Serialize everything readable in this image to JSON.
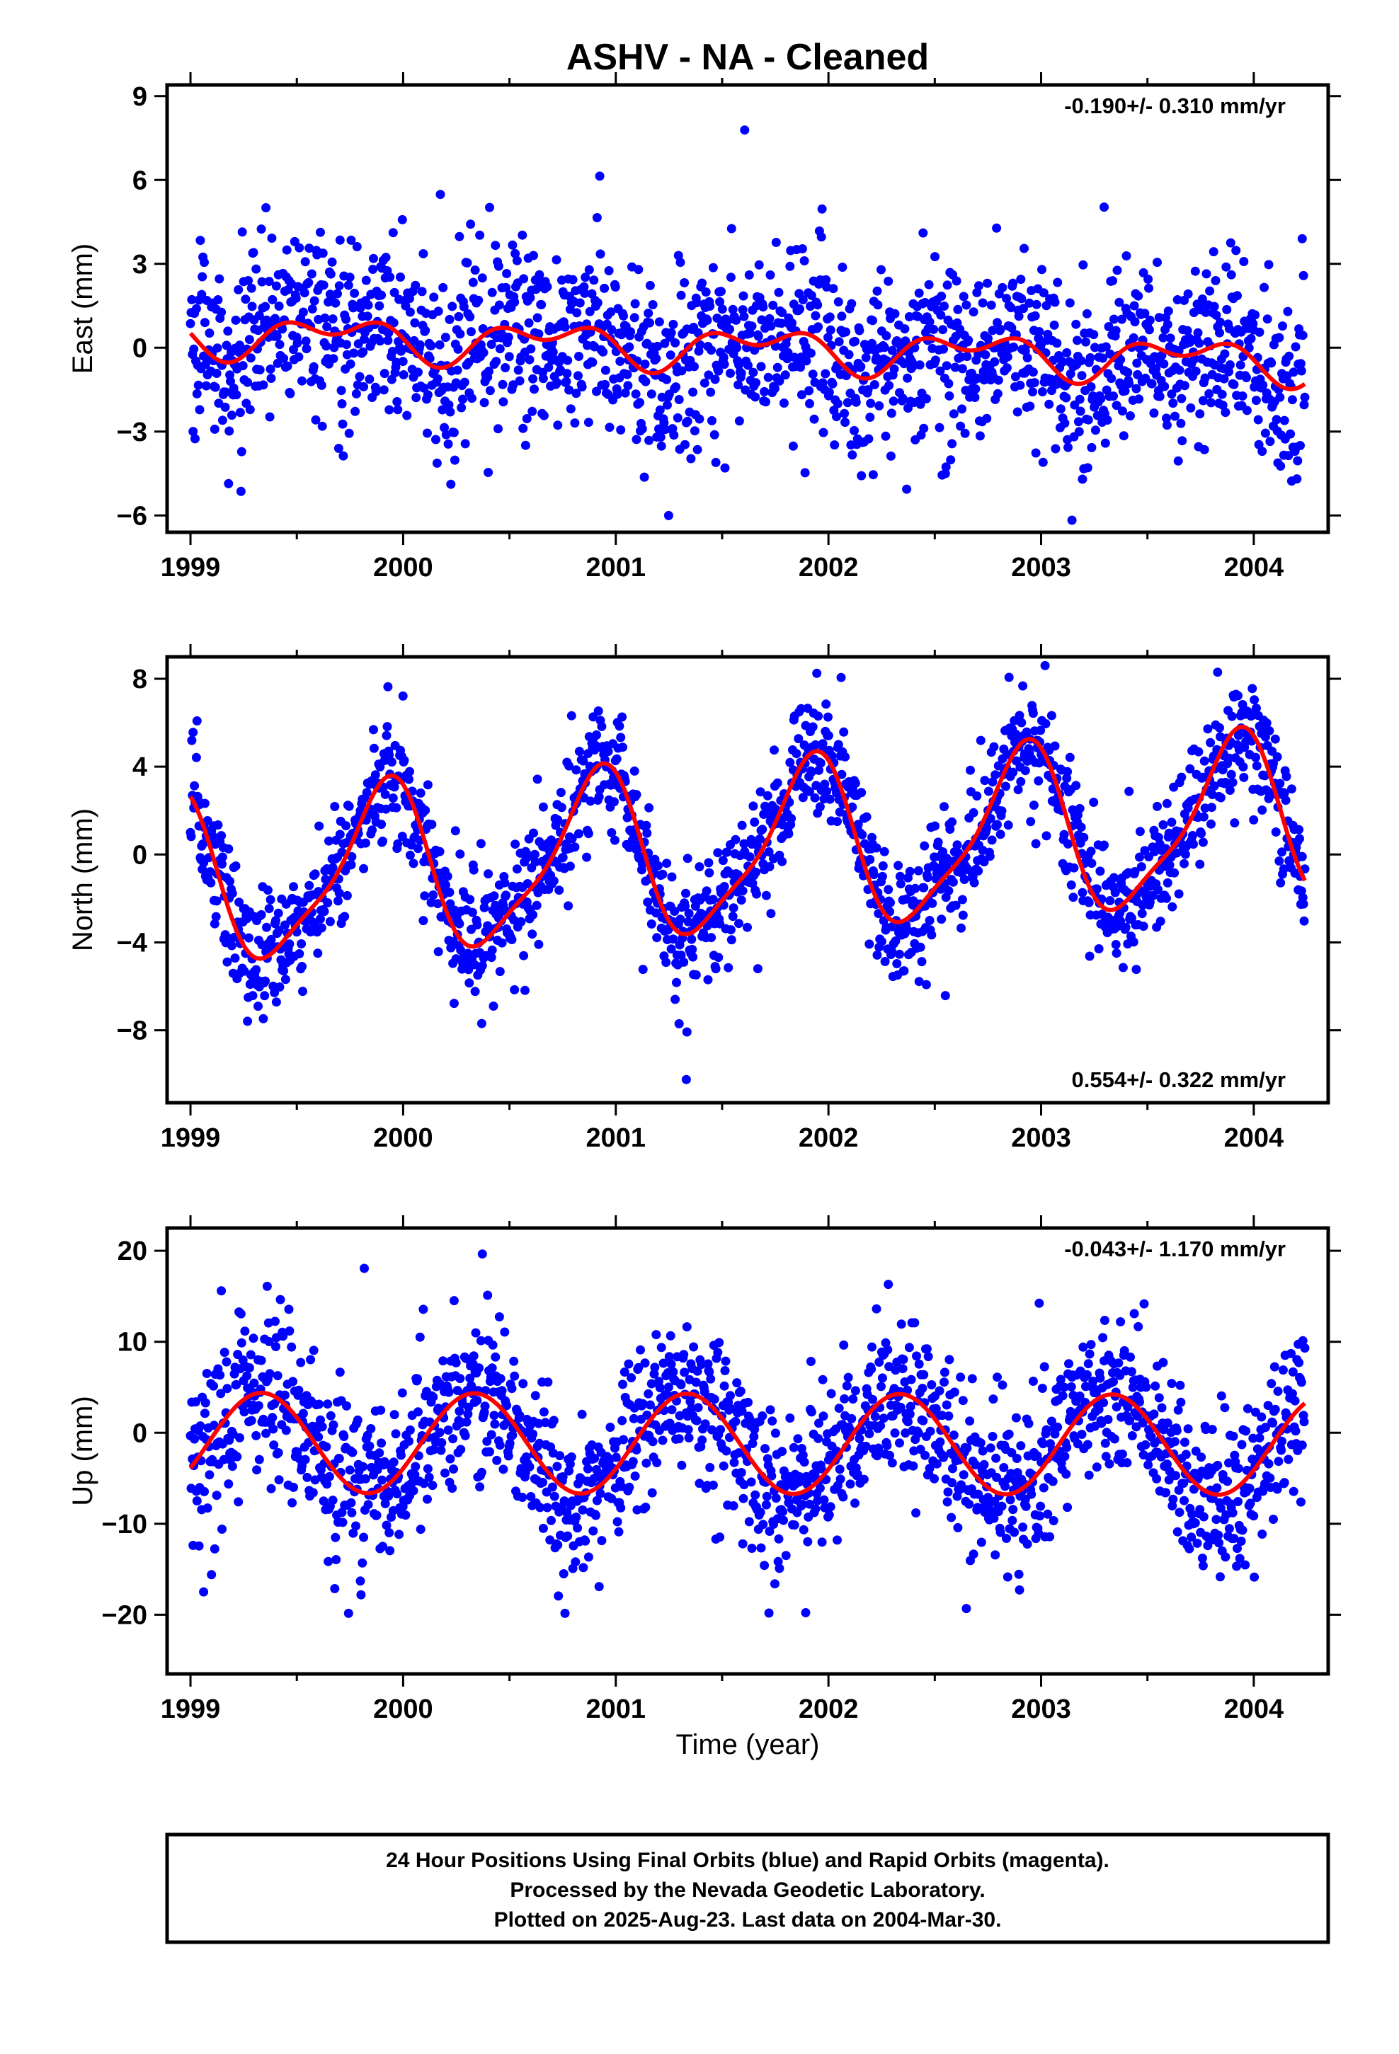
{
  "title": "ASHV  - NA - Cleaned",
  "x_axis": {
    "label": "Time (year)",
    "range": [
      1998.89,
      2004.35
    ],
    "ticks": [
      1999,
      2000,
      2001,
      2002,
      2003,
      2004
    ],
    "tick_labels": [
      "1999",
      "2000",
      "2001",
      "2002",
      "2003",
      "2004"
    ]
  },
  "colors": {
    "data": "#0000ff",
    "model": "#ff0000",
    "frame": "#000000"
  },
  "chart_data": [
    {
      "type": "scatter",
      "component": "east",
      "ylabel": "East (mm)",
      "ylim": [
        -6.6,
        9.4
      ],
      "yticks": [
        -6,
        -3,
        0,
        3,
        6,
        9
      ],
      "ytick_labels": [
        "−6",
        "−3",
        "0",
        "3",
        "6",
        "9"
      ],
      "rate_text": "-0.190+/- 0.310 mm/yr",
      "rate_position": "top-right",
      "time_range": [
        1999.0,
        2004.24
      ],
      "rate": -0.19,
      "model_harmonics": {
        "annual_amp": 0.55,
        "annual_phase": 2.0,
        "semiannual_amp": 0.45,
        "semiannual_phase": 1.0,
        "offset": 0.5
      },
      "scatter_sigma": 1.6,
      "n_points": 1700,
      "series": [
        {
          "name": "Final Orbits (blue)",
          "kind": "daily positions"
        },
        {
          "name": "model fit",
          "kind": "red curve"
        }
      ]
    },
    {
      "type": "scatter",
      "component": "north",
      "ylabel": "North (mm)",
      "ylim": [
        -11.3,
        9.0
      ],
      "yticks": [
        -8,
        -4,
        0,
        4,
        8
      ],
      "ytick_labels": [
        "−8",
        "−4",
        "0",
        "4",
        "8"
      ],
      "rate_text": "0.554+/- 0.322 mm/yr",
      "rate_position": "bottom-right",
      "time_range": [
        1999.0,
        2004.24
      ],
      "rate": 0.554,
      "model_harmonics": {
        "annual_amp": 3.7,
        "annual_phase": 0.6,
        "semiannual_amp": 0.9,
        "semiannual_phase": 0.2,
        "offset": -1.3
      },
      "scatter_sigma": 1.4,
      "n_points": 1700,
      "series": [
        {
          "name": "Final Orbits (blue)",
          "kind": "daily positions"
        },
        {
          "name": "model fit",
          "kind": "red curve"
        }
      ]
    },
    {
      "type": "scatter",
      "component": "up",
      "ylabel": "Up (mm)",
      "ylim": [
        -26.5,
        22.5
      ],
      "yticks": [
        -20,
        -10,
        0,
        10,
        20
      ],
      "ytick_labels": [
        "−20",
        "−10",
        "0",
        "10",
        "20"
      ],
      "rate_text": "-0.043+/- 1.170 mm/yr",
      "rate_position": "top-right",
      "time_range": [
        1999.0,
        2004.24
      ],
      "rate": -0.043,
      "model_harmonics": {
        "annual_amp": 5.5,
        "annual_phase": -2.1,
        "semiannual_amp": 0.0,
        "semiannual_phase": 0.0,
        "offset": -1.1
      },
      "scatter_sigma": 4.4,
      "n_points": 1700,
      "series": [
        {
          "name": "Final Orbits (blue)",
          "kind": "daily positions"
        },
        {
          "name": "model fit",
          "kind": "red curve"
        }
      ]
    }
  ],
  "footer": {
    "line1": "24 Hour Positions Using Final Orbits (blue) and Rapid Orbits (magenta).",
    "line2": "Processed by the Nevada Geodetic Laboratory.",
    "line3": "Plotted on 2025-Aug-23. Last data on 2004-Mar-30."
  }
}
